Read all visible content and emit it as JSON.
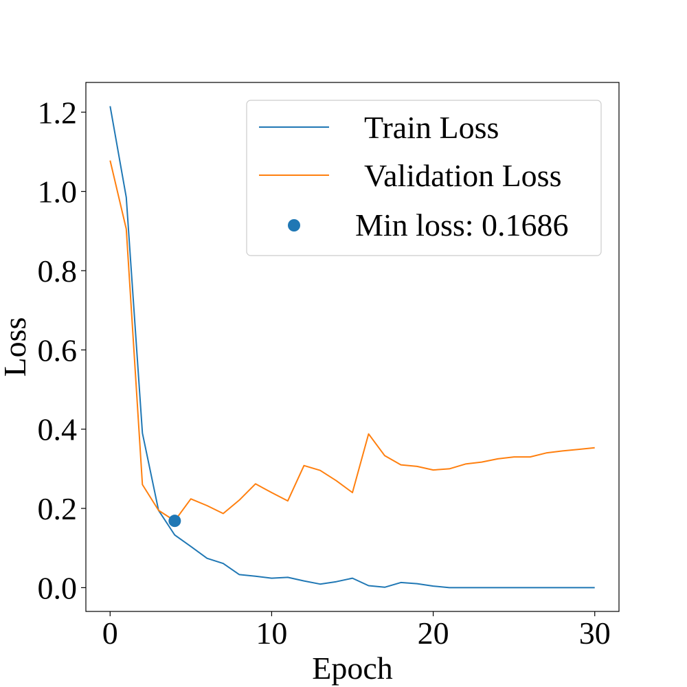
{
  "chart_data": {
    "type": "line",
    "xlabel": "Epoch",
    "ylabel": "Loss",
    "xlim": [
      -1.5,
      31.5
    ],
    "ylim": [
      -0.06,
      1.275
    ],
    "xticks": [
      0,
      10,
      20,
      30
    ],
    "xtick_labels": [
      "0",
      "10",
      "20",
      "30"
    ],
    "yticks": [
      0.0,
      0.2,
      0.4,
      0.6,
      0.8,
      1.0,
      1.2
    ],
    "ytick_labels": [
      "0.0",
      "0.2",
      "0.4",
      "0.6",
      "0.8",
      "1.0",
      "1.2"
    ],
    "grid": false,
    "legend_position": "top-right",
    "series": [
      {
        "name": "Train Loss",
        "color": "#1f77b4",
        "x": [
          0,
          1,
          2,
          3,
          4,
          5,
          6,
          7,
          8,
          9,
          10,
          11,
          12,
          13,
          14,
          15,
          16,
          17,
          18,
          19,
          20,
          21,
          22,
          23,
          24,
          25,
          26,
          27,
          28,
          29,
          30
        ],
        "values": [
          1.215,
          0.985,
          0.39,
          0.195,
          0.133,
          0.104,
          0.074,
          0.061,
          0.033,
          0.029,
          0.024,
          0.026,
          0.017,
          0.009,
          0.015,
          0.024,
          0.005,
          0.001,
          0.013,
          0.01,
          0.004,
          0.0,
          0.0,
          0.0,
          0.0,
          0.0,
          0.0,
          0.0,
          0.0,
          0.0,
          0.0
        ]
      },
      {
        "name": "Validation Loss",
        "color": "#ff7f0e",
        "x": [
          0,
          1,
          2,
          3,
          4,
          5,
          6,
          7,
          8,
          9,
          10,
          11,
          12,
          13,
          14,
          15,
          16,
          17,
          18,
          19,
          20,
          21,
          22,
          23,
          24,
          25,
          26,
          27,
          28,
          29,
          30
        ],
        "values": [
          1.078,
          0.905,
          0.26,
          0.195,
          0.1686,
          0.224,
          0.207,
          0.187,
          0.221,
          0.262,
          0.24,
          0.219,
          0.308,
          0.296,
          0.27,
          0.24,
          0.388,
          0.333,
          0.31,
          0.306,
          0.297,
          0.3,
          0.312,
          0.317,
          0.325,
          0.33,
          0.33,
          0.34,
          0.345,
          0.349,
          0.353
        ]
      }
    ],
    "marker": {
      "name": "Min loss: 0.1686",
      "color": "#1f77b4",
      "x": 4,
      "y": 0.1686
    }
  }
}
